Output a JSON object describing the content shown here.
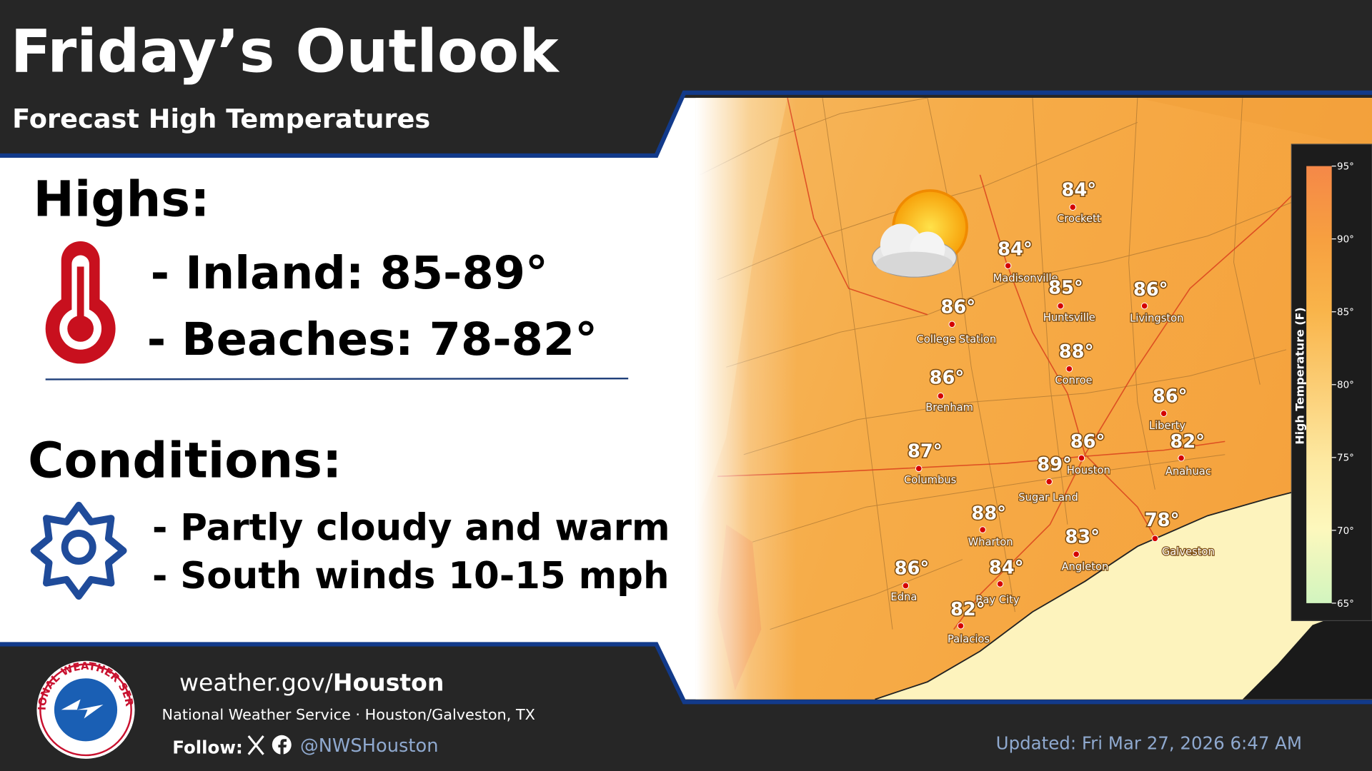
{
  "header": {
    "title": "Friday’s Outlook",
    "subtitle": "Forecast High Temperatures"
  },
  "highs": {
    "heading": "Highs:",
    "items": [
      "- Inland: 85-89°",
      "- Beaches: 78-82°"
    ]
  },
  "conditions": {
    "heading": "Conditions:",
    "items": [
      "- Partly cloudy and warm",
      "- South winds 10-15 mph"
    ]
  },
  "map": {
    "cities": [
      {
        "name": "Crockett",
        "temp": "84°"
      },
      {
        "name": "Madisonville",
        "temp": "84°"
      },
      {
        "name": "Huntsville",
        "temp": "85°"
      },
      {
        "name": "Livingston",
        "temp": "86°"
      },
      {
        "name": "College Station",
        "temp": "86°"
      },
      {
        "name": "Conroe",
        "temp": "88°"
      },
      {
        "name": "Brenham",
        "temp": "86°"
      },
      {
        "name": "Liberty",
        "temp": "86°"
      },
      {
        "name": "Anahuac",
        "temp": "82°"
      },
      {
        "name": "Houston",
        "temp": "86°"
      },
      {
        "name": "Sugar Land",
        "temp": "89°"
      },
      {
        "name": "Columbus",
        "temp": "87°"
      },
      {
        "name": "Wharton",
        "temp": "88°"
      },
      {
        "name": "Angleton",
        "temp": "83°"
      },
      {
        "name": "Galveston",
        "temp": "78°"
      },
      {
        "name": "Edna",
        "temp": "86°"
      },
      {
        "name": "Bay City",
        "temp": "84°"
      },
      {
        "name": "Palacios",
        "temp": "82°"
      }
    ],
    "legend": {
      "title": "High Temperature (F)",
      "ticks": [
        "95°",
        "90°",
        "85°",
        "80°",
        "75°",
        "70°",
        "65°"
      ]
    }
  },
  "footer": {
    "logo_text": "NATIONAL WEATHER SERVICE",
    "site_prefix": "weather.gov/",
    "site_name": "Houston",
    "org": "National Weather Service · Houston/Galveston, TX",
    "follow": "Follow:",
    "handle": "@NWSHouston",
    "updated": "Updated: Fri Mar 27, 2026 6:47 AM"
  }
}
